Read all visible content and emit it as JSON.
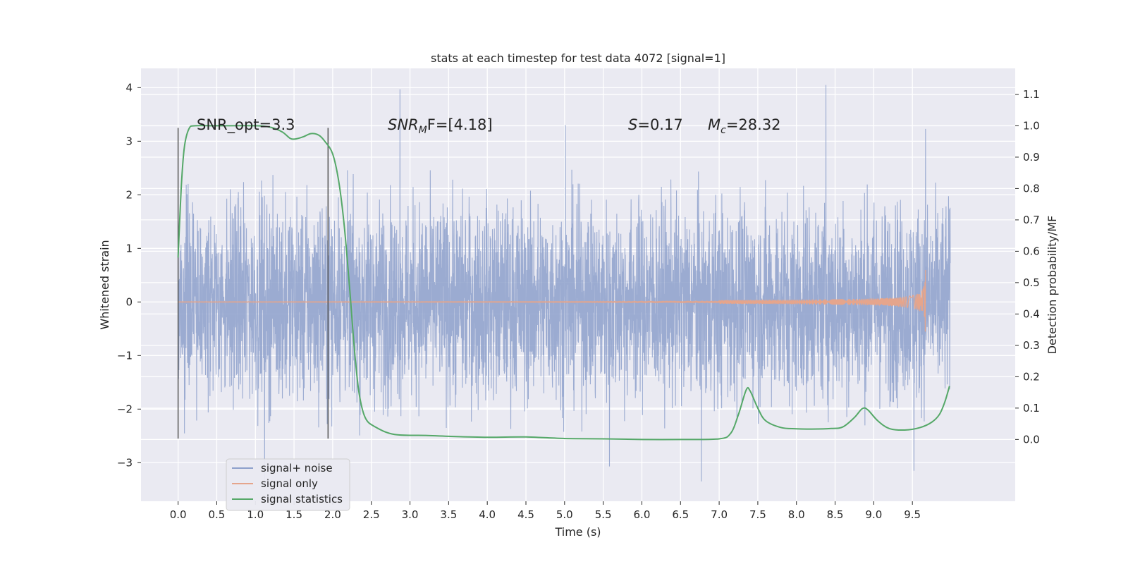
{
  "chart_data": {
    "type": "line",
    "title": "stats at each timestep for test data 4072 [signal=1]",
    "xlabel": "Time (s)",
    "ylabel": "Whitened strain",
    "ylabel_right": "Detection probability/MF",
    "xlim": [
      -0.48,
      10.83
    ],
    "ylim": [
      -3.72,
      4.36
    ],
    "ylim_right": [
      -0.197,
      1.183
    ],
    "x_ticks": [
      "0.0",
      "0.5",
      "1.0",
      "1.5",
      "2.0",
      "2.5",
      "3.0",
      "3.5",
      "4.0",
      "4.5",
      "5.0",
      "5.5",
      "6.0",
      "6.5",
      "7.0",
      "7.5",
      "8.0",
      "8.5",
      "9.0",
      "9.5"
    ],
    "y_ticks": [
      "−3",
      "−2",
      "−1",
      "0",
      "1",
      "2",
      "3",
      "4"
    ],
    "y_ticks_right": [
      "0.0",
      "0.1",
      "0.2",
      "0.3",
      "0.4",
      "0.5",
      "0.6",
      "0.7",
      "0.8",
      "0.9",
      "1.0",
      "1.1"
    ],
    "grid": true,
    "legend_placement": "lower-left",
    "annotations": {
      "snr_opt": "SNR_opt=3.3",
      "snr_mf_base": "SNR",
      "snr_mf_sub": "M",
      "snr_mf_rest": "F=[4.18]",
      "s_italic": "S",
      "s_value": "=0.17",
      "mc_base": "M",
      "mc_sub": "c",
      "mc_value": "=28.32"
    },
    "window_markers_x": [
      0.0,
      1.94
    ],
    "window_markers_y": [
      -2.55,
      3.25
    ],
    "series": [
      {
        "name": "signal+ noise",
        "color": "#8da0cb",
        "x_range": [
          0.0,
          9.99
        ],
        "spike_peaks": [
          [
            2.87,
            3.97
          ],
          [
            8.38,
            4.05
          ],
          [
            5.01,
            3.3
          ],
          [
            9.67,
            3.23
          ]
        ],
        "spike_troughs": [
          [
            1.12,
            -3.45
          ],
          [
            6.77,
            -3.35
          ],
          [
            9.52,
            -3.15
          ],
          [
            5.58,
            -3.07
          ]
        ]
      },
      {
        "name": "signal only",
        "color": "#e5a58c",
        "x_range": [
          0.0,
          9.67
        ],
        "chirp_peak_amplitude": 0.7
      },
      {
        "name": "signal statistics",
        "color": "#55a868",
        "axis": "right",
        "points": [
          [
            0.0,
            0.58
          ],
          [
            0.04,
            0.8
          ],
          [
            0.08,
            0.93
          ],
          [
            0.14,
            0.99
          ],
          [
            0.22,
            1.0
          ],
          [
            0.5,
            1.0
          ],
          [
            1.0,
            1.0
          ],
          [
            1.2,
            0.995
          ],
          [
            1.35,
            0.98
          ],
          [
            1.45,
            0.96
          ],
          [
            1.52,
            0.958
          ],
          [
            1.62,
            0.965
          ],
          [
            1.72,
            0.975
          ],
          [
            1.82,
            0.97
          ],
          [
            1.9,
            0.95
          ],
          [
            2.0,
            0.91
          ],
          [
            2.08,
            0.82
          ],
          [
            2.15,
            0.68
          ],
          [
            2.22,
            0.48
          ],
          [
            2.28,
            0.29
          ],
          [
            2.34,
            0.15
          ],
          [
            2.42,
            0.07
          ],
          [
            2.55,
            0.04
          ],
          [
            2.8,
            0.016
          ],
          [
            3.2,
            0.013
          ],
          [
            3.5,
            0.01
          ],
          [
            4.0,
            0.007
          ],
          [
            4.5,
            0.008
          ],
          [
            5.0,
            0.003
          ],
          [
            5.5,
            0.002
          ],
          [
            6.0,
            0.0
          ],
          [
            6.5,
            0.0
          ],
          [
            7.0,
            0.002
          ],
          [
            7.15,
            0.02
          ],
          [
            7.25,
            0.08
          ],
          [
            7.35,
            0.158
          ],
          [
            7.4,
            0.155
          ],
          [
            7.5,
            0.1
          ],
          [
            7.6,
            0.06
          ],
          [
            7.8,
            0.038
          ],
          [
            8.0,
            0.034
          ],
          [
            8.2,
            0.033
          ],
          [
            8.45,
            0.035
          ],
          [
            8.6,
            0.04
          ],
          [
            8.75,
            0.07
          ],
          [
            8.85,
            0.098
          ],
          [
            8.92,
            0.095
          ],
          [
            9.05,
            0.06
          ],
          [
            9.2,
            0.035
          ],
          [
            9.4,
            0.03
          ],
          [
            9.6,
            0.038
          ],
          [
            9.75,
            0.055
          ],
          [
            9.85,
            0.08
          ],
          [
            9.92,
            0.12
          ],
          [
            9.98,
            0.17
          ]
        ]
      }
    ]
  }
}
